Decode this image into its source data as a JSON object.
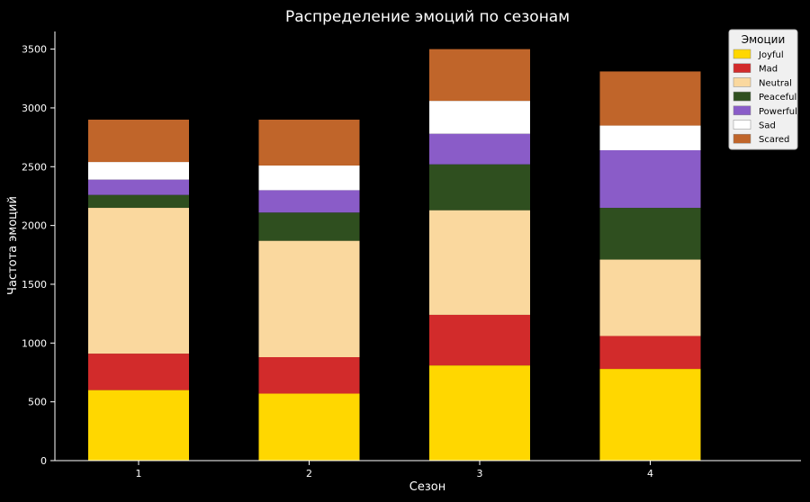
{
  "chart_data": {
    "type": "bar",
    "stacked": true,
    "title": "Распределение эмоций по сезонам",
    "xlabel": "Сезон",
    "ylabel": "Частота эмоций",
    "categories": [
      "1",
      "2",
      "3",
      "4"
    ],
    "ylim": [
      0,
      3650
    ],
    "yticks": [
      "0",
      "500",
      "1000",
      "1500",
      "2000",
      "2500",
      "3000",
      "3500"
    ],
    "grid": false,
    "legend": {
      "title": "Эмоции",
      "placement": "top-right"
    },
    "series": [
      {
        "name": "Joyful",
        "color": "#FFD700",
        "values": [
          600,
          570,
          810,
          780
        ]
      },
      {
        "name": "Mad",
        "color": "#D22B2B",
        "values": [
          310,
          310,
          430,
          280
        ]
      },
      {
        "name": "Neutral",
        "color": "#FAD89E",
        "values": [
          1240,
          990,
          890,
          650
        ]
      },
      {
        "name": "Peaceful",
        "color": "#2F4F1F",
        "values": [
          110,
          240,
          390,
          440
        ]
      },
      {
        "name": "Powerful",
        "color": "#8A5CC8",
        "values": [
          130,
          190,
          260,
          490
        ]
      },
      {
        "name": "Sad",
        "color": "#FFFFFF",
        "values": [
          150,
          210,
          280,
          210
        ]
      },
      {
        "name": "Scared",
        "color": "#C0652A",
        "values": [
          360,
          390,
          440,
          460
        ]
      }
    ]
  }
}
